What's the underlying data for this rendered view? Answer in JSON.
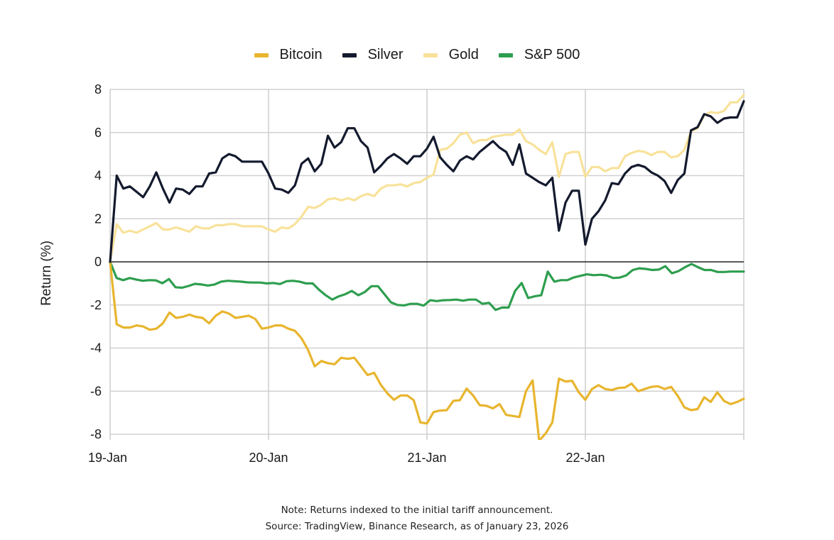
{
  "chart_data": {
    "type": "line",
    "title": "",
    "xlabel": "",
    "ylabel": "Return (%)",
    "ylim": [
      -8,
      8
    ],
    "yticks": [
      8,
      6,
      4,
      2,
      0,
      -2,
      -4,
      -6,
      -8
    ],
    "ytick_labels": [
      "8",
      "6",
      "4",
      "2",
      "0",
      "-2",
      "-4",
      "-6",
      "-8"
    ],
    "x_interval": "hourly",
    "x_range_hours": [
      0,
      96
    ],
    "xticks": [
      {
        "hour": 0,
        "label": "19-Jan"
      },
      {
        "hour": 24,
        "label": "20-Jan"
      },
      {
        "hour": 48,
        "label": "21-Jan"
      },
      {
        "hour": 72,
        "label": "22-Jan"
      }
    ],
    "grid": true,
    "legend_position": "top-center",
    "series": [
      {
        "name": "Bitcoin",
        "color": "#E8B52E",
        "values": [
          0,
          -2.9,
          -3.05,
          -3.05,
          -2.95,
          -3.0,
          -3.15,
          -3.1,
          -2.85,
          -2.35,
          -2.6,
          -2.55,
          -2.45,
          -2.55,
          -2.6,
          -2.85,
          -2.5,
          -2.3,
          -2.4,
          -2.6,
          -2.55,
          -2.5,
          -2.65,
          -3.1,
          -3.05,
          -2.95,
          -2.95,
          -3.1,
          -3.2,
          -3.55,
          -4.1,
          -4.85,
          -4.6,
          -4.7,
          -4.75,
          -4.45,
          -4.5,
          -4.45,
          -4.85,
          -5.25,
          -5.15,
          -5.7,
          -6.1,
          -6.4,
          -6.2,
          -6.2,
          -6.42,
          -7.45,
          -7.5,
          -6.97,
          -6.9,
          -6.88,
          -6.45,
          -6.42,
          -5.88,
          -6.2,
          -6.65,
          -6.68,
          -6.8,
          -6.6,
          -7.1,
          -7.15,
          -7.2,
          -6.0,
          -5.5,
          -8.3,
          -7.95,
          -7.45,
          -5.42,
          -5.55,
          -5.52,
          -6.05,
          -6.4,
          -5.9,
          -5.72,
          -5.9,
          -5.95,
          -5.85,
          -5.83,
          -5.65,
          -6.0,
          -5.9,
          -5.8,
          -5.77,
          -5.9,
          -5.8,
          -6.22,
          -6.75,
          -6.88,
          -6.83,
          -6.28,
          -6.5,
          -6.05,
          -6.45,
          -6.6,
          -6.5,
          -6.35
        ]
      },
      {
        "name": "Silver",
        "color": "#141A2E",
        "values": [
          0,
          4.0,
          3.4,
          3.5,
          3.25,
          3.0,
          3.5,
          4.15,
          3.4,
          2.75,
          3.4,
          3.35,
          3.15,
          3.5,
          3.5,
          4.1,
          4.15,
          4.8,
          5.0,
          4.9,
          4.65,
          4.65,
          4.65,
          4.65,
          4.1,
          3.4,
          3.35,
          3.2,
          3.55,
          4.55,
          4.8,
          4.2,
          4.55,
          5.85,
          5.3,
          5.55,
          6.2,
          6.2,
          5.6,
          5.3,
          4.15,
          4.45,
          4.8,
          5.0,
          4.8,
          4.55,
          4.9,
          4.9,
          5.25,
          5.8,
          4.85,
          4.5,
          4.2,
          4.7,
          4.9,
          4.75,
          5.1,
          5.35,
          5.6,
          5.3,
          5.1,
          4.5,
          5.45,
          4.1,
          3.9,
          3.7,
          3.55,
          3.9,
          1.45,
          2.75,
          3.3,
          3.3,
          0.8,
          2.0,
          2.35,
          2.85,
          3.65,
          3.6,
          4.1,
          4.4,
          4.5,
          4.4,
          4.15,
          4.0,
          3.75,
          3.2,
          3.8,
          4.1,
          6.1,
          6.25,
          6.85,
          6.75,
          6.45,
          6.65,
          6.7,
          6.7,
          7.45
        ]
      },
      {
        "name": "Gold",
        "color": "#F8E29A",
        "values": [
          0,
          1.75,
          1.35,
          1.45,
          1.35,
          1.5,
          1.65,
          1.8,
          1.5,
          1.5,
          1.6,
          1.5,
          1.4,
          1.65,
          1.55,
          1.55,
          1.7,
          1.7,
          1.75,
          1.75,
          1.65,
          1.65,
          1.65,
          1.65,
          1.5,
          1.4,
          1.6,
          1.55,
          1.75,
          2.1,
          2.55,
          2.5,
          2.65,
          2.9,
          2.95,
          2.85,
          2.95,
          2.85,
          3.05,
          3.15,
          3.05,
          3.4,
          3.55,
          3.55,
          3.6,
          3.5,
          3.65,
          3.7,
          3.9,
          4.05,
          5.2,
          5.25,
          5.5,
          5.9,
          6.0,
          5.5,
          5.65,
          5.65,
          5.8,
          5.85,
          5.9,
          5.9,
          6.15,
          5.6,
          5.45,
          5.2,
          5.0,
          5.55,
          3.95,
          5.0,
          5.1,
          5.1,
          3.95,
          4.4,
          4.4,
          4.2,
          4.35,
          4.35,
          4.9,
          5.05,
          5.15,
          5.1,
          4.95,
          5.1,
          5.1,
          4.85,
          4.9,
          5.2,
          6.05,
          6.2,
          6.8,
          6.95,
          6.9,
          7.0,
          7.4,
          7.4,
          7.75
        ]
      },
      {
        "name": "S&P 500",
        "color": "#2E9E4F",
        "values": [
          0,
          -0.75,
          -0.85,
          -0.75,
          -0.82,
          -0.88,
          -0.85,
          -0.86,
          -0.99,
          -0.8,
          -1.18,
          -1.2,
          -1.12,
          -1.02,
          -1.05,
          -1.1,
          -1.05,
          -0.92,
          -0.88,
          -0.9,
          -0.92,
          -0.95,
          -0.96,
          -0.96,
          -1.0,
          -0.98,
          -1.03,
          -0.9,
          -0.88,
          -0.92,
          -1.0,
          -1.0,
          -1.3,
          -1.55,
          -1.75,
          -1.6,
          -1.5,
          -1.35,
          -1.55,
          -1.4,
          -1.13,
          -1.13,
          -1.5,
          -1.88,
          -2.0,
          -2.02,
          -1.95,
          -1.95,
          -2.03,
          -1.78,
          -1.82,
          -1.78,
          -1.77,
          -1.75,
          -1.8,
          -1.75,
          -1.75,
          -1.95,
          -1.9,
          -2.23,
          -2.12,
          -2.12,
          -1.35,
          -0.98,
          -1.68,
          -1.6,
          -1.55,
          -0.45,
          -0.92,
          -0.85,
          -0.85,
          -0.72,
          -0.65,
          -0.58,
          -0.62,
          -0.6,
          -0.63,
          -0.75,
          -0.73,
          -0.63,
          -0.38,
          -0.3,
          -0.33,
          -0.38,
          -0.36,
          -0.2,
          -0.53,
          -0.43,
          -0.25,
          -0.1,
          -0.25,
          -0.38,
          -0.38,
          -0.47,
          -0.47,
          -0.45,
          -0.45,
          -0.45
        ]
      }
    ]
  },
  "legend": [
    {
      "label": "Bitcoin",
      "color": "#E8B52E"
    },
    {
      "label": "Silver",
      "color": "#141A2E"
    },
    {
      "label": "Gold",
      "color": "#F8E29A"
    },
    {
      "label": "S&P 500",
      "color": "#2E9E4F"
    }
  ],
  "footer": {
    "note": "Note: Returns indexed to the initial tariff announcement.",
    "source": "Source: TradingView, Binance Research, as of January 23, 2026"
  }
}
